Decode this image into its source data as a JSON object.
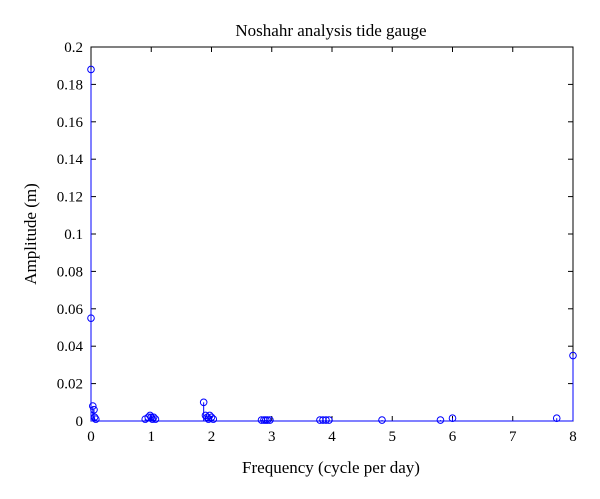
{
  "chart_data": {
    "type": "scatter",
    "style": "stem",
    "title": "Noshahr analysis tide gauge",
    "xlabel": "Frequency (cycle per day)",
    "ylabel": "Amplitude (m)",
    "xlim": [
      0,
      8
    ],
    "ylim": [
      0,
      0.2
    ],
    "xticks": [
      "0",
      "1",
      "2",
      "3",
      "4",
      "5",
      "6",
      "7",
      "8"
    ],
    "yticks": [
      "0",
      "0.02",
      "0.04",
      "0.06",
      "0.08",
      "0.1",
      "0.12",
      "0.14",
      "0.16",
      "0.18",
      "0.2"
    ],
    "grid": false,
    "color": "#0000ff",
    "series": [
      {
        "x": [
          0,
          0,
          0.03,
          0.05,
          0.06,
          0.08,
          0.9,
          0.95,
          0.98,
          1.0,
          1.02,
          1.04,
          1.07,
          1.87,
          1.9,
          1.93,
          1.95,
          1.97,
          2.0,
          2.03,
          2.83,
          2.87,
          2.9,
          2.93,
          2.97,
          3.8,
          3.85,
          3.9,
          3.95,
          4.83,
          5.8,
          6.0,
          7.73,
          8.0
        ],
        "y": [
          0.188,
          0.055,
          0.008,
          0.006,
          0.002,
          0.001,
          0.001,
          0.002,
          0.003,
          0.002,
          0.001,
          0.002,
          0.001,
          0.01,
          0.003,
          0.002,
          0.001,
          0.003,
          0.002,
          0.001,
          0.0005,
          0.0005,
          0.0005,
          0.0005,
          0.0005,
          0.0005,
          0.0005,
          0.0005,
          0.0005,
          0.0005,
          0.0005,
          0.0015,
          0.0015,
          0.035
        ]
      }
    ]
  }
}
